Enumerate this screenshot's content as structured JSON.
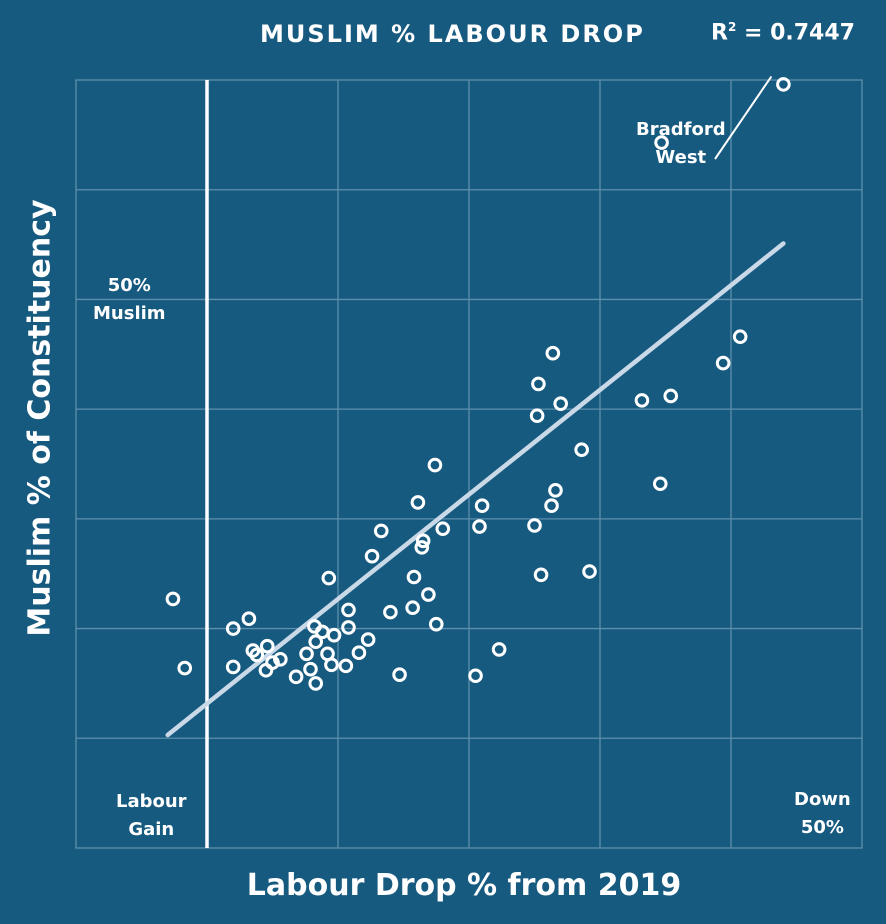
{
  "chart_data": {
    "type": "scatter",
    "title": "MUSLIM % LABOUR DROP",
    "r_squared_prefix": "R",
    "r_squared_exp": "2",
    "r_squared_value": " = 0.7447",
    "xlabel": "Labour Drop % from 2019",
    "ylabel": "Muslim % of Constituency",
    "xlim": [
      -10,
      50
    ],
    "ylim": [
      -20,
      50
    ],
    "grid": true,
    "reference_line_x": 0,
    "trendline": {
      "x": [
        -3,
        44
      ],
      "y": [
        -9.7,
        35.1
      ],
      "color": "#c9d9e8"
    },
    "annotations": {
      "top_left": [
        "50%",
        "Muslim"
      ],
      "bottom_left": [
        "Labour",
        "Gain"
      ],
      "bottom_right": [
        "Down",
        "50%"
      ],
      "highlight": [
        "Bradford",
        "West"
      ]
    },
    "colors": {
      "background": "#175a80",
      "grid": "#5d8eac",
      "points": "#ffffff"
    },
    "points": [
      [
        -2.6,
        2.7
      ],
      [
        -1.7,
        -3.6
      ],
      [
        2.0,
        -3.5
      ],
      [
        2.0,
        0.0
      ],
      [
        3.2,
        0.9
      ],
      [
        3.5,
        -2.0
      ],
      [
        3.8,
        -2.4
      ],
      [
        4.6,
        -1.6
      ],
      [
        4.5,
        -3.8
      ],
      [
        5.0,
        -3.1
      ],
      [
        5.6,
        -2.8
      ],
      [
        6.8,
        -4.4
      ],
      [
        7.6,
        -2.3
      ],
      [
        7.9,
        -3.7
      ],
      [
        8.3,
        -5.0
      ],
      [
        8.2,
        0.2
      ],
      [
        8.3,
        -1.2
      ],
      [
        8.8,
        -0.3
      ],
      [
        9.2,
        -2.3
      ],
      [
        9.5,
        -3.3
      ],
      [
        9.7,
        -0.6
      ],
      [
        10.6,
        -3.4
      ],
      [
        10.8,
        0.1
      ],
      [
        10.8,
        1.7
      ],
      [
        11.6,
        -2.2
      ],
      [
        12.3,
        -1.0
      ],
      [
        9.3,
        4.6
      ],
      [
        12.6,
        6.6
      ],
      [
        13.3,
        8.9
      ],
      [
        14.0,
        1.5
      ],
      [
        14.7,
        -4.2
      ],
      [
        15.7,
        1.9
      ],
      [
        15.8,
        4.7
      ],
      [
        16.1,
        11.5
      ],
      [
        16.4,
        7.4
      ],
      [
        16.5,
        8.0
      ],
      [
        16.9,
        3.1
      ],
      [
        17.4,
        14.9
      ],
      [
        17.5,
        0.4
      ],
      [
        18.0,
        9.1
      ],
      [
        20.5,
        -4.3
      ],
      [
        20.8,
        9.3
      ],
      [
        21.0,
        11.2
      ],
      [
        22.3,
        -1.9
      ],
      [
        25.0,
        9.4
      ],
      [
        25.2,
        19.4
      ],
      [
        25.3,
        22.3
      ],
      [
        25.5,
        4.9
      ],
      [
        26.3,
        11.2
      ],
      [
        26.4,
        25.1
      ],
      [
        26.6,
        12.6
      ],
      [
        27.0,
        20.5
      ],
      [
        28.6,
        16.3
      ],
      [
        29.2,
        5.2
      ],
      [
        33.2,
        20.8
      ],
      [
        34.6,
        13.2
      ],
      [
        34.7,
        44.3
      ],
      [
        35.4,
        21.2
      ],
      [
        39.4,
        24.2
      ],
      [
        40.7,
        26.6
      ],
      [
        44.0,
        49.6
      ]
    ]
  }
}
